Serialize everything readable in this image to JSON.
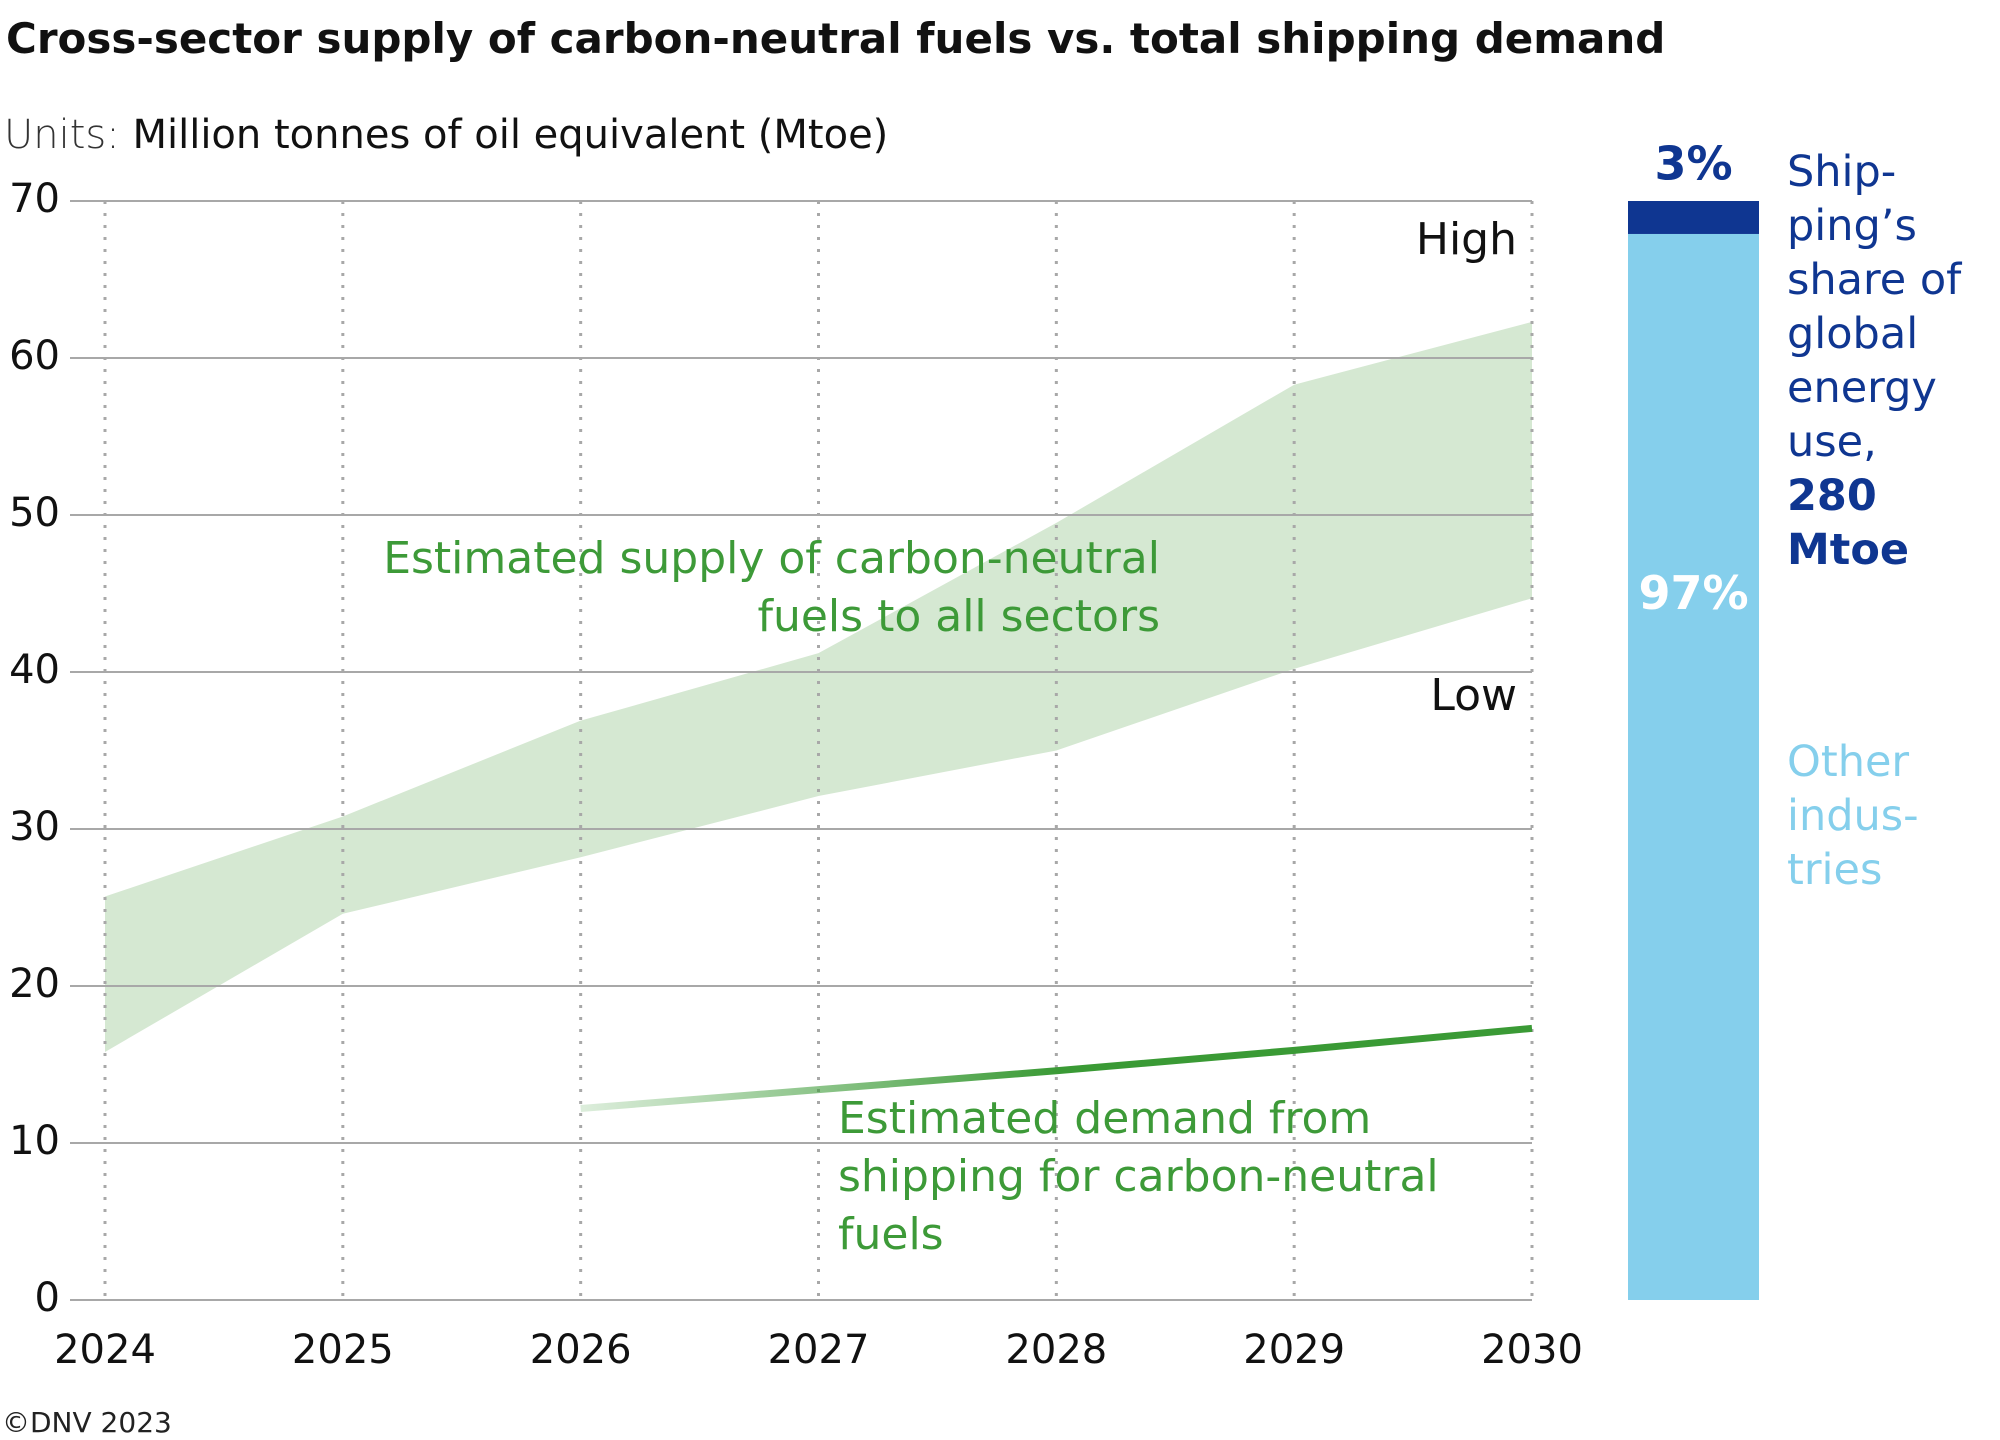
{
  "chart_data": [
    {
      "type": "line",
      "title": "Cross-sector supply of carbon-neutral fuels vs. total shipping demand",
      "units_label": "Units:",
      "subtitle": "Million tonnes of oil equivalent (Mtoe)",
      "x": [
        2024,
        2025,
        2026,
        2027,
        2028,
        2029,
        2030
      ],
      "xlim": [
        2024,
        2030
      ],
      "xticks": [
        2024,
        2025,
        2026,
        2027,
        2028,
        2029,
        2030
      ],
      "ylim": [
        0,
        70
      ],
      "yticks": [
        0,
        10,
        20,
        30,
        40,
        50,
        60,
        70
      ],
      "grid": true,
      "band_color": "#d5e8d2",
      "band_label": "Estimated supply of carbon-neutral fuels to all sectors",
      "series": [
        {
          "name": "High",
          "color": "#d5e8d2",
          "values": [
            25.7,
            30.8,
            36.9,
            41.2,
            49.5,
            58.3,
            62.3
          ]
        },
        {
          "name": "Low",
          "color": "#d5e8d2",
          "values": [
            15.8,
            24.6,
            28.2,
            32.1,
            35.0,
            40.2,
            44.7
          ]
        },
        {
          "name": "Estimated demand from shipping for carbon-neutral fuels",
          "color": "#3a9a35",
          "values": [
            null,
            null,
            12.2,
            13.4,
            14.6,
            15.9,
            17.3
          ]
        }
      ],
      "credit": "©DNV 2023"
    },
    {
      "type": "bar",
      "stacked": true,
      "ylim": [
        0,
        100
      ],
      "series": [
        {
          "name": "Other indus­tries",
          "color": "#85cfec",
          "values": [
            97
          ],
          "value_labels": [
            "97%"
          ]
        },
        {
          "name": "Ship­ping’s share of global energy use,",
          "color": "#0f3691",
          "values": [
            3
          ],
          "value_labels": [
            "3%"
          ]
        }
      ],
      "annotation": "280 Mtoe"
    }
  ]
}
